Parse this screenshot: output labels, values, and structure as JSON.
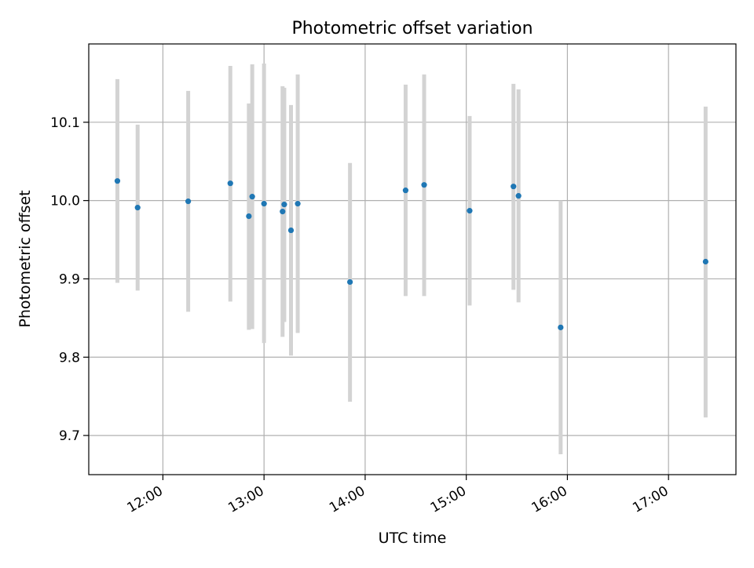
{
  "chart_data": {
    "type": "scatter",
    "title": "Photometric offset variation",
    "xlabel": "UTC time",
    "ylabel": "Photometric offset",
    "x_ticks": [
      "12:00",
      "13:00",
      "14:00",
      "15:00",
      "16:00",
      "17:00"
    ],
    "y_ticks": [
      "9.7",
      "9.8",
      "9.9",
      "10.0",
      "10.1"
    ],
    "xlim": [
      "11:16",
      "17:40"
    ],
    "ylim": [
      9.65,
      10.2
    ],
    "grid": true,
    "colors": {
      "points": "#1f77b4",
      "error_bars": "#d3d3d3",
      "grid": "#b0b0b0"
    },
    "points": [
      {
        "x": "11:33",
        "y": 10.025,
        "y_low": 9.895,
        "y_high": 10.155
      },
      {
        "x": "11:45",
        "y": 9.991,
        "y_low": 9.885,
        "y_high": 10.097
      },
      {
        "x": "12:15",
        "y": 9.999,
        "y_low": 9.858,
        "y_high": 10.14
      },
      {
        "x": "12:40",
        "y": 10.022,
        "y_low": 9.871,
        "y_high": 10.172
      },
      {
        "x": "12:51",
        "y": 9.98,
        "y_low": 9.835,
        "y_high": 10.124
      },
      {
        "x": "12:53",
        "y": 10.005,
        "y_low": 9.836,
        "y_high": 10.174
      },
      {
        "x": "13:00",
        "y": 9.996,
        "y_low": 9.818,
        "y_high": 10.175
      },
      {
        "x": "13:11",
        "y": 9.986,
        "y_low": 9.826,
        "y_high": 10.146
      },
      {
        "x": "13:12",
        "y": 9.995,
        "y_low": 9.845,
        "y_high": 10.144
      },
      {
        "x": "13:16",
        "y": 9.962,
        "y_low": 9.802,
        "y_high": 10.122
      },
      {
        "x": "13:20",
        "y": 9.996,
        "y_low": 9.831,
        "y_high": 10.161
      },
      {
        "x": "13:51",
        "y": 9.896,
        "y_low": 9.743,
        "y_high": 10.048
      },
      {
        "x": "14:24",
        "y": 10.013,
        "y_low": 9.878,
        "y_high": 10.148
      },
      {
        "x": "14:35",
        "y": 10.02,
        "y_low": 9.878,
        "y_high": 10.161
      },
      {
        "x": "15:02",
        "y": 9.987,
        "y_low": 9.866,
        "y_high": 10.108
      },
      {
        "x": "15:28",
        "y": 10.018,
        "y_low": 9.886,
        "y_high": 10.149
      },
      {
        "x": "15:31",
        "y": 10.006,
        "y_low": 9.87,
        "y_high": 10.142
      },
      {
        "x": "15:56",
        "y": 9.838,
        "y_low": 9.676,
        "y_high": 10.0
      },
      {
        "x": "17:22",
        "y": 9.922,
        "y_low": 9.723,
        "y_high": 10.12
      }
    ]
  }
}
